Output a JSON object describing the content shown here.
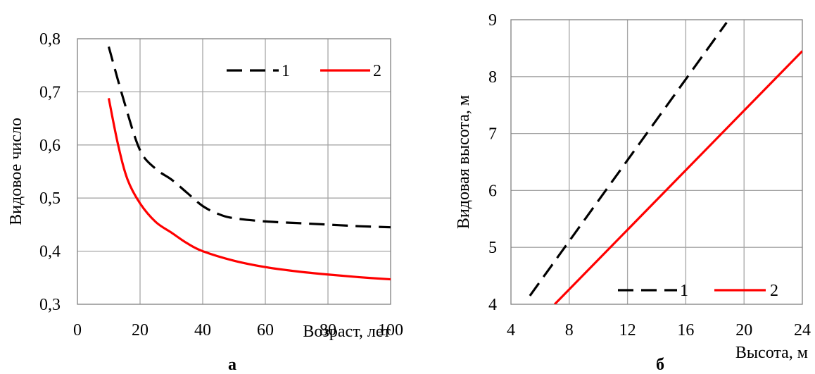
{
  "chart_data": [
    {
      "type": "line",
      "panel_label": "а",
      "xlabel": "Возраст, лет",
      "ylabel": "Видовое число",
      "xlim": [
        0,
        100
      ],
      "ylim": [
        0.3,
        0.8
      ],
      "xticks": [
        0,
        20,
        40,
        60,
        80,
        100
      ],
      "xtick_labels": [
        "0",
        "20",
        "40",
        "60",
        "80",
        "100"
      ],
      "yticks": [
        0.3,
        0.4,
        0.5,
        0.6,
        0.7,
        0.8
      ],
      "ytick_labels": [
        "0,3",
        "0,4",
        "0,5",
        "0,6",
        "0,7",
        "0,8"
      ],
      "grid": true,
      "legend_position": "top-right",
      "series": [
        {
          "name": "1",
          "color": "#000000",
          "style": "dashed",
          "x": [
            10,
            15,
            20,
            25,
            30,
            35,
            40,
            45,
            50,
            60,
            70,
            80,
            90,
            100
          ],
          "y": [
            0.785,
            0.68,
            0.59,
            0.555,
            0.535,
            0.51,
            0.485,
            0.47,
            0.462,
            0.456,
            0.453,
            0.45,
            0.447,
            0.445
          ]
        },
        {
          "name": "2",
          "color": "#ff0000",
          "style": "solid",
          "x": [
            10,
            13,
            16,
            20,
            25,
            30,
            35,
            40,
            50,
            60,
            70,
            80,
            90,
            100
          ],
          "y": [
            0.688,
            0.6,
            0.535,
            0.49,
            0.455,
            0.435,
            0.415,
            0.4,
            0.382,
            0.37,
            0.362,
            0.356,
            0.351,
            0.347
          ]
        }
      ]
    },
    {
      "type": "line",
      "panel_label": "б",
      "xlabel": "Высота, м",
      "ylabel": "Видовая высота, м",
      "xlim": [
        4,
        24
      ],
      "ylim": [
        4,
        9
      ],
      "xticks": [
        4,
        8,
        12,
        16,
        20,
        24
      ],
      "xtick_labels": [
        "4",
        "8",
        "12",
        "16",
        "20",
        "24"
      ],
      "yticks": [
        4,
        5,
        6,
        7,
        8,
        9
      ],
      "ytick_labels": [
        "4",
        "5",
        "6",
        "7",
        "8",
        "9"
      ],
      "grid": true,
      "legend_position": "bottom-right",
      "series": [
        {
          "name": "1",
          "color": "#000000",
          "style": "dashed",
          "x": [
            5.3,
            18.8
          ],
          "y": [
            4.15,
            8.95
          ]
        },
        {
          "name": "2",
          "color": "#ff0000",
          "style": "solid",
          "x": [
            7.0,
            24.0
          ],
          "y": [
            4.0,
            8.45
          ]
        }
      ]
    }
  ]
}
